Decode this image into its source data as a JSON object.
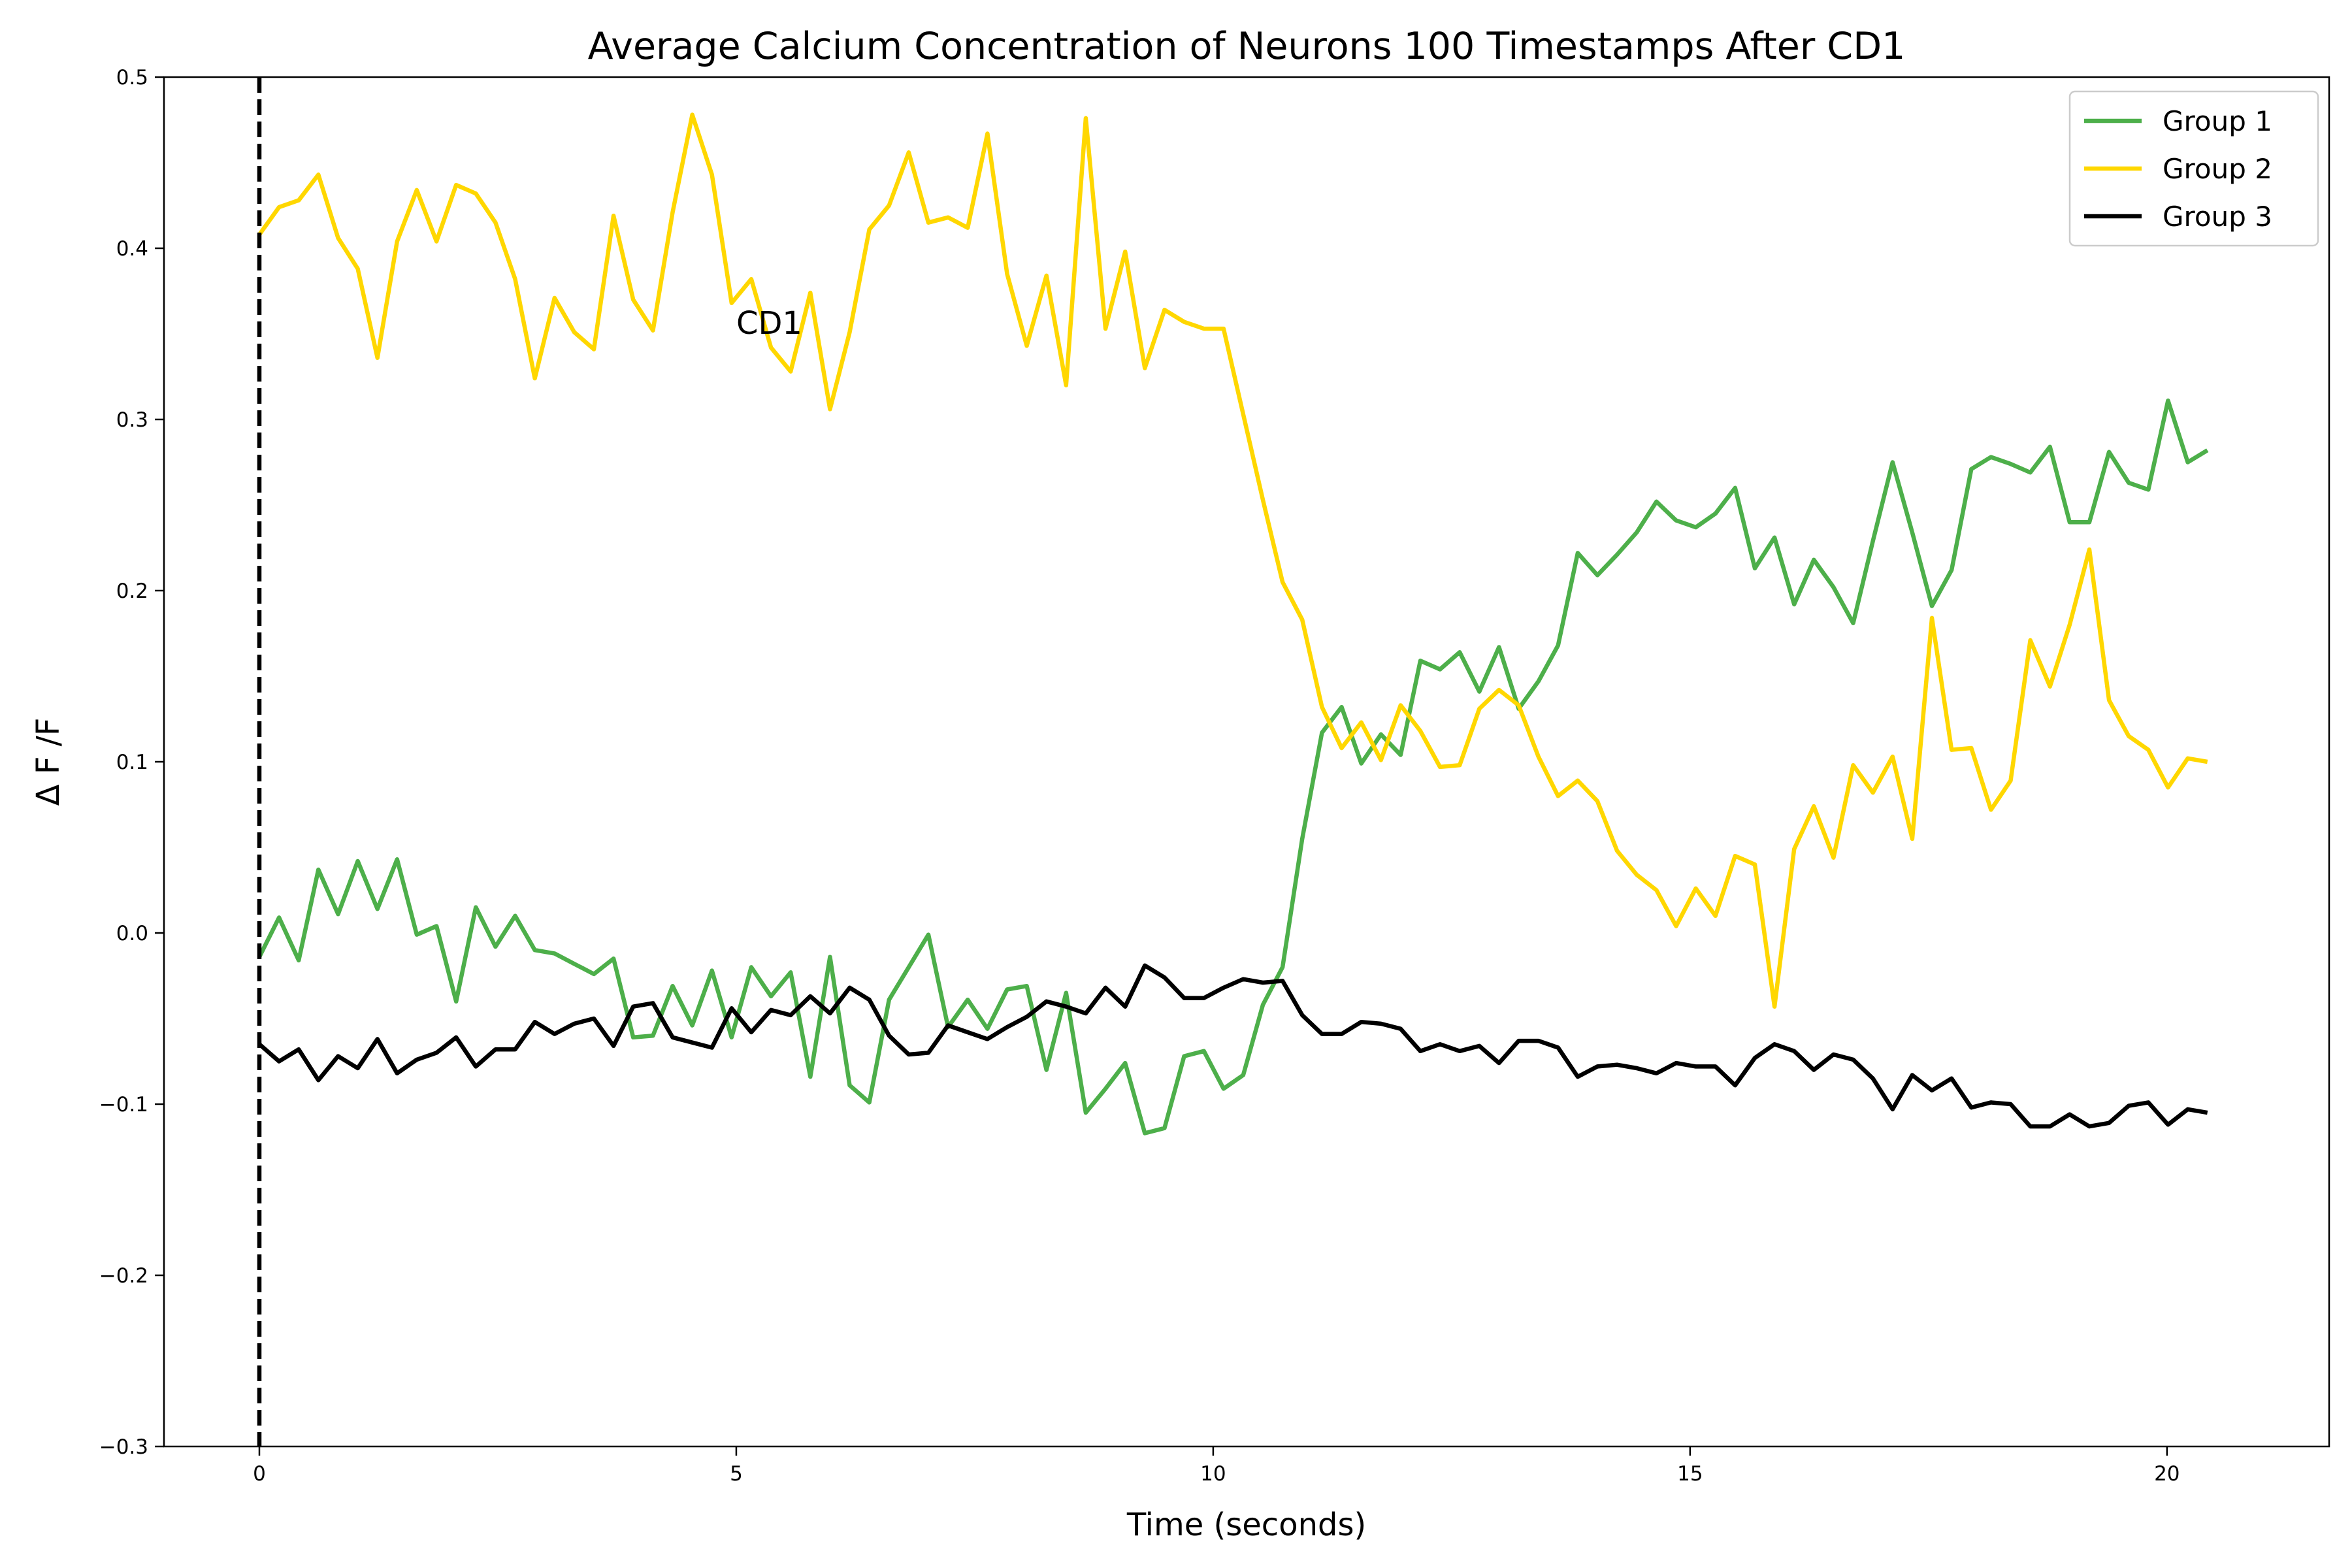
{
  "chart_data": {
    "type": "line",
    "title": "Average Calcium Concentration of Neurons 100 Timestamps After CD1",
    "xlabel": "Time (seconds)",
    "ylabel": "Δ F /F",
    "xlim": [
      -1.0,
      21.7
    ],
    "ylim": [
      -0.3,
      0.5
    ],
    "xticks": [
      0,
      5,
      10,
      15,
      20
    ],
    "xtick_labels": [
      "0",
      "5",
      "10",
      "15",
      "20"
    ],
    "yticks": [
      -0.3,
      -0.2,
      -0.1,
      0.0,
      0.1,
      0.2,
      0.3,
      0.4,
      0.5
    ],
    "ytick_labels": [
      "−0.3",
      "−0.2",
      "−0.1",
      "0.0",
      "0.1",
      "0.2",
      "0.3",
      "0.4",
      "0.5"
    ],
    "grid": false,
    "legend_position": "top-right",
    "event_line": {
      "x": 0,
      "style": "dashed",
      "color": "#000000"
    },
    "annotations": [
      {
        "text": "CD1",
        "x": 5.0,
        "y": 0.35
      }
    ],
    "x_step": 0.2063,
    "series": [
      {
        "name": "Group 1",
        "color": "#4daf4a",
        "values": [
          -0.014,
          0.009,
          -0.016,
          0.037,
          0.011,
          0.042,
          0.014,
          0.043,
          -0.001,
          0.004,
          -0.04,
          0.015,
          -0.008,
          0.01,
          -0.01,
          -0.012,
          -0.018,
          -0.024,
          -0.015,
          -0.061,
          -0.06,
          -0.031,
          -0.054,
          -0.022,
          -0.061,
          -0.02,
          -0.037,
          -0.023,
          -0.084,
          -0.014,
          -0.089,
          -0.099,
          -0.039,
          -0.02,
          -0.001,
          -0.055,
          -0.039,
          -0.056,
          -0.033,
          -0.031,
          -0.08,
          -0.035,
          -0.105,
          -0.091,
          -0.076,
          -0.117,
          -0.114,
          -0.072,
          -0.069,
          -0.091,
          -0.083,
          -0.042,
          -0.02,
          0.055,
          0.117,
          0.132,
          0.099,
          0.116,
          0.104,
          0.159,
          0.154,
          0.164,
          0.141,
          0.167,
          0.131,
          0.147,
          0.168,
          0.222,
          0.209,
          0.221,
          0.234,
          0.252,
          0.241,
          0.237,
          0.245,
          0.26,
          0.213,
          0.231,
          0.192,
          0.218,
          0.202,
          0.181,
          0.229,
          0.275,
          0.234,
          0.191,
          0.212,
          0.271,
          0.278,
          0.274,
          0.269,
          0.284,
          0.24,
          0.24,
          0.281,
          0.263,
          0.259,
          0.311,
          0.275,
          0.282
        ]
      },
      {
        "name": "Group 2",
        "color": "#ffd700",
        "values": [
          0.408,
          0.424,
          0.428,
          0.443,
          0.406,
          0.388,
          0.336,
          0.404,
          0.434,
          0.404,
          0.437,
          0.432,
          0.415,
          0.382,
          0.324,
          0.371,
          0.351,
          0.341,
          0.419,
          0.37,
          0.352,
          0.421,
          0.478,
          0.443,
          0.368,
          0.382,
          0.342,
          0.328,
          0.374,
          0.306,
          0.351,
          0.411,
          0.425,
          0.456,
          0.415,
          0.418,
          0.412,
          0.467,
          0.385,
          0.343,
          0.384,
          0.32,
          0.476,
          0.353,
          0.398,
          0.33,
          0.364,
          0.357,
          0.353,
          0.353,
          0.303,
          0.253,
          0.205,
          0.183,
          0.132,
          0.108,
          0.123,
          0.101,
          0.133,
          0.118,
          0.097,
          0.098,
          0.131,
          0.142,
          0.133,
          0.103,
          0.08,
          0.089,
          0.077,
          0.048,
          0.034,
          0.025,
          0.004,
          0.026,
          0.01,
          0.045,
          0.04,
          -0.043,
          0.049,
          0.074,
          0.044,
          0.098,
          0.082,
          0.103,
          0.055,
          0.184,
          0.107,
          0.108,
          0.072,
          0.089,
          0.171,
          0.144,
          0.18,
          0.224,
          0.136,
          0.115,
          0.107,
          0.085,
          0.102,
          0.1
        ]
      },
      {
        "name": "Group 3",
        "color": "#000000",
        "values": [
          -0.065,
          -0.075,
          -0.068,
          -0.086,
          -0.072,
          -0.079,
          -0.062,
          -0.082,
          -0.074,
          -0.07,
          -0.061,
          -0.078,
          -0.068,
          -0.068,
          -0.052,
          -0.059,
          -0.053,
          -0.05,
          -0.066,
          -0.043,
          -0.041,
          -0.061,
          -0.064,
          -0.067,
          -0.044,
          -0.058,
          -0.045,
          -0.048,
          -0.037,
          -0.047,
          -0.032,
          -0.039,
          -0.06,
          -0.071,
          -0.07,
          -0.054,
          -0.058,
          -0.062,
          -0.055,
          -0.049,
          -0.04,
          -0.043,
          -0.047,
          -0.032,
          -0.043,
          -0.019,
          -0.026,
          -0.038,
          -0.038,
          -0.032,
          -0.027,
          -0.029,
          -0.028,
          -0.048,
          -0.059,
          -0.059,
          -0.052,
          -0.053,
          -0.056,
          -0.069,
          -0.065,
          -0.069,
          -0.066,
          -0.076,
          -0.063,
          -0.063,
          -0.067,
          -0.084,
          -0.078,
          -0.077,
          -0.079,
          -0.082,
          -0.076,
          -0.078,
          -0.078,
          -0.089,
          -0.073,
          -0.065,
          -0.069,
          -0.08,
          -0.071,
          -0.074,
          -0.085,
          -0.103,
          -0.083,
          -0.092,
          -0.085,
          -0.102,
          -0.099,
          -0.1,
          -0.113,
          -0.113,
          -0.106,
          -0.113,
          -0.111,
          -0.101,
          -0.099,
          -0.112,
          -0.103,
          -0.105
        ]
      }
    ]
  }
}
